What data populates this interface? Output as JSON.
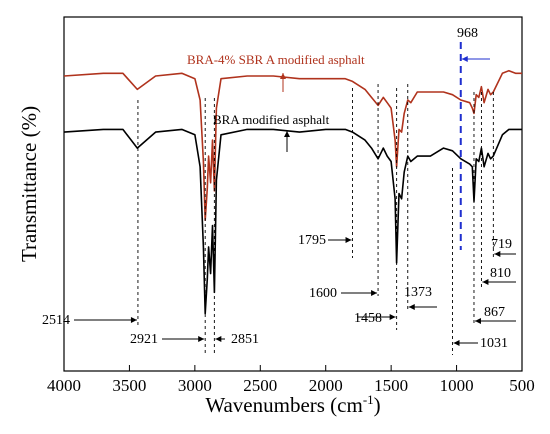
{
  "chart_data": {
    "type": "line",
    "title": "",
    "xlabel": "Wavenumbers (cm",
    "xlabel_sup": "-1",
    "xlabel_close": ")",
    "ylabel": "Transmittance (%)",
    "xlim": [
      4000,
      500
    ],
    "x_reversed": true,
    "y_ticks_shown": false,
    "grid": false,
    "x_ticks": [
      4000,
      3500,
      3000,
      2500,
      2000,
      1500,
      1000,
      500
    ],
    "x_tick_labels": [
      "4000",
      "3500",
      "3000",
      "2500",
      "2000",
      "1500",
      "1000",
      "500"
    ],
    "colors": {
      "top_series": "#b0331d",
      "bottom_series": "#000000",
      "marker_968": "#1f2fcf"
    },
    "series": [
      {
        "name": "BRA-4% SBR A modified asphalt",
        "x": [
          4000,
          3700,
          3550,
          3440,
          3300,
          3100,
          3000,
          2960,
          2935,
          2921,
          2905,
          2895,
          2880,
          2865,
          2851,
          2835,
          2800,
          2600,
          2400,
          2200,
          2000,
          1850,
          1795,
          1700,
          1650,
          1600,
          1560,
          1530,
          1500,
          1470,
          1458,
          1440,
          1420,
          1400,
          1373,
          1350,
          1300,
          1200,
          1100,
          1031,
          968,
          900,
          880,
          867,
          850,
          830,
          810,
          790,
          760,
          740,
          719,
          650,
          600,
          550,
          500
        ],
        "y": [
          94,
          95,
          95,
          89,
          94,
          95,
          93,
          85,
          62,
          40,
          52,
          64,
          54,
          70,
          51,
          82,
          93,
          94,
          94,
          93,
          93,
          93,
          92,
          89,
          86,
          83,
          86,
          84,
          82,
          70,
          60,
          74,
          73,
          80,
          85,
          84,
          88,
          88,
          88,
          87,
          85,
          84,
          82,
          80,
          87,
          86,
          90,
          84,
          89,
          87,
          88,
          95,
          96,
          95,
          95
        ]
      },
      {
        "name": "BRA modified asphalt",
        "x": [
          4000,
          3700,
          3550,
          3440,
          3300,
          3100,
          3000,
          2960,
          2935,
          2921,
          2905,
          2895,
          2880,
          2865,
          2851,
          2835,
          2800,
          2600,
          2400,
          2200,
          2000,
          1850,
          1795,
          1700,
          1650,
          1600,
          1560,
          1530,
          1500,
          1470,
          1458,
          1440,
          1420,
          1400,
          1373,
          1350,
          1300,
          1200,
          1100,
          1031,
          968,
          900,
          880,
          867,
          850,
          830,
          810,
          790,
          760,
          740,
          719,
          650,
          600,
          550,
          500
        ],
        "y": [
          73,
          74,
          74,
          67,
          73,
          74,
          72,
          60,
          30,
          5,
          18,
          30,
          20,
          38,
          13,
          55,
          72,
          74,
          74,
          73,
          74,
          74,
          73,
          70,
          67,
          63,
          67,
          64,
          62,
          48,
          24,
          50,
          48,
          58,
          64,
          62,
          64,
          64,
          67,
          66,
          63,
          61,
          60,
          47,
          63,
          62,
          67,
          60,
          65,
          63,
          64,
          72,
          74,
          74,
          74
        ]
      }
    ],
    "peak_labels": [
      {
        "text": "2514",
        "x": 3435
      },
      {
        "text": "2921",
        "x": 2921
      },
      {
        "text": "2851",
        "x": 2851
      },
      {
        "text": "1795",
        "x": 1795
      },
      {
        "text": "1600",
        "x": 1600
      },
      {
        "text": "1458",
        "x": 1458
      },
      {
        "text": "1373",
        "x": 1373
      },
      {
        "text": "1031",
        "x": 1031
      },
      {
        "text": "968",
        "x": 968
      },
      {
        "text": "867",
        "x": 867
      },
      {
        "text": "810",
        "x": 810
      },
      {
        "text": "719",
        "x": 719
      }
    ]
  }
}
